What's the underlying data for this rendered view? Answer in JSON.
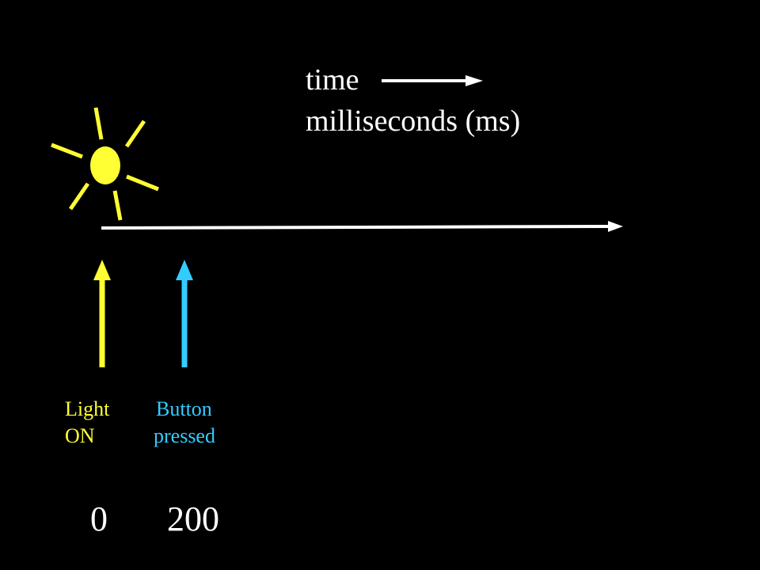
{
  "header": {
    "time_label": "time",
    "unit_label": "milliseconds (ms)"
  },
  "events": [
    {
      "line1": "Light",
      "line2": "ON",
      "value": "0",
      "color": "#ffff33",
      "icon": "sun-icon"
    },
    {
      "line1": "Button",
      "line2": "pressed",
      "value": "200",
      "color": "#33ccff"
    }
  ],
  "colors": {
    "background": "#000000",
    "axis": "#ffffff",
    "sun": "#ffff33",
    "button": "#33ccff"
  }
}
